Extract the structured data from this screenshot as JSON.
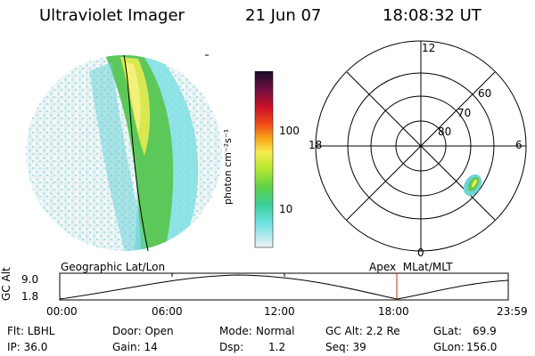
{
  "header": {
    "title": "Ultraviolet Imager",
    "date": "21 Jun 07",
    "time": "18:08:32 UT"
  },
  "colorbar": {
    "unit_label": "photon cm⁻²s⁻¹",
    "ticks": [
      "100",
      "10"
    ]
  },
  "polar": {
    "mlt_labels": {
      "top": "12",
      "left": "18",
      "right": "6",
      "bottom": "0"
    },
    "lat_labels": [
      "60",
      "70",
      "80"
    ]
  },
  "timeline": {
    "left_title": "Geographic Lat/Lon",
    "right_title": "Apex  MLat/MLT",
    "axis_label": "GC Alt",
    "y_ticks": [
      "9.0",
      "1.8"
    ],
    "x_ticks": [
      "00:00",
      "06:00",
      "12:00",
      "18:00",
      "23:59"
    ],
    "marker_color": "#cc3300"
  },
  "status": {
    "filter": "Flt: LBHL",
    "ip": "IP: 36.0",
    "door": "Door: Open",
    "gain": "Gain: 14",
    "mode_label": "Mode:",
    "mode_value": "Normal",
    "dsp_label": "Dsp:",
    "dsp_value": "1.2",
    "gc_alt": "GC Alt: 2.2 Re",
    "seq": "Seq: 39",
    "glat_label": "GLat:",
    "glat_value": "69.9",
    "glon_label": "GLon:",
    "glon_value": "156.0"
  }
}
